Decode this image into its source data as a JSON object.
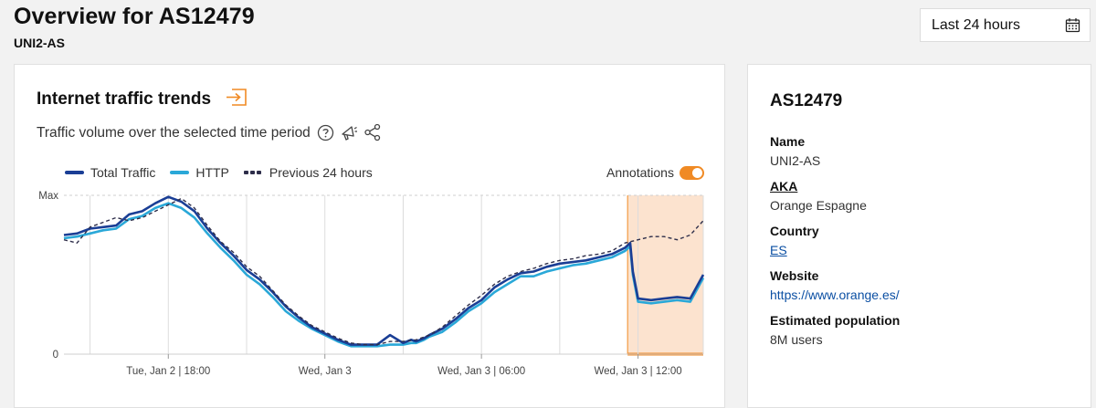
{
  "header": {
    "title": "Overview for AS12479",
    "subtitle": "UNI2-AS",
    "range_label": "Last 24 hours"
  },
  "traffic_card": {
    "title": "Internet traffic trends",
    "subtitle": "Traffic volume over the selected time period",
    "legend": [
      {
        "label": "Total Traffic",
        "color": "#1a3e95"
      },
      {
        "label": "HTTP",
        "color": "#2aa8d8"
      },
      {
        "label": "Previous 24 hours",
        "color": "#2e2e4a"
      }
    ],
    "annotations_label": "Annotations",
    "annotation_color": "#f08a24"
  },
  "info_card": {
    "title": "AS12479",
    "fields": [
      {
        "label": "Name",
        "value": "UNI2-AS"
      },
      {
        "label": "AKA",
        "value": "Orange Espagne"
      },
      {
        "label": "Country",
        "value": "ES"
      },
      {
        "label": "Website",
        "value": "https://www.orange.es/"
      },
      {
        "label": "Estimated population",
        "value": "8M users"
      }
    ]
  },
  "chart_data": {
    "type": "line",
    "y_tick_labels": [
      "Max",
      "0"
    ],
    "x_tick_labels": [
      "Tue, Jan 2 | 18:00",
      "Wed, Jan 3",
      "Wed, Jan 3 | 06:00",
      "Wed, Jan 3 | 12:00"
    ],
    "ylim": [
      0,
      1
    ],
    "xlim": [
      14.0,
      38.5
    ],
    "x_ticks": [
      18,
      24,
      30,
      36
    ],
    "grid": true,
    "legend_position": "top-left",
    "annotation_window": {
      "start": 35.6,
      "end": 38.5
    },
    "series": [
      {
        "name": "Total Traffic",
        "color": "#1a3e95",
        "x": [
          14.0,
          14.5,
          15.0,
          15.5,
          16.0,
          16.5,
          17.0,
          17.5,
          18.0,
          18.5,
          19.0,
          19.5,
          20.0,
          20.5,
          21.0,
          21.5,
          22.0,
          22.5,
          23.0,
          23.5,
          24.0,
          24.5,
          25.0,
          25.5,
          26.0,
          26.5,
          27.0,
          27.3,
          27.5,
          27.8,
          28.0,
          28.5,
          29.0,
          29.5,
          30.0,
          30.5,
          31.0,
          31.5,
          32.0,
          32.5,
          33.0,
          33.5,
          34.0,
          34.5,
          35.0,
          35.5,
          35.7,
          35.8,
          36.0,
          36.5,
          37.0,
          37.5,
          38.0,
          38.5
        ],
        "y": [
          0.75,
          0.76,
          0.79,
          0.8,
          0.81,
          0.88,
          0.9,
          0.95,
          0.99,
          0.96,
          0.9,
          0.79,
          0.7,
          0.62,
          0.53,
          0.47,
          0.39,
          0.3,
          0.23,
          0.17,
          0.13,
          0.09,
          0.06,
          0.06,
          0.06,
          0.12,
          0.07,
          0.09,
          0.08,
          0.1,
          0.12,
          0.16,
          0.22,
          0.29,
          0.34,
          0.42,
          0.47,
          0.51,
          0.52,
          0.55,
          0.57,
          0.58,
          0.59,
          0.61,
          0.63,
          0.67,
          0.7,
          0.52,
          0.35,
          0.34,
          0.35,
          0.36,
          0.35,
          0.5
        ]
      },
      {
        "name": "HTTP",
        "color": "#2aa8d8",
        "x": [
          14.0,
          14.5,
          15.0,
          15.5,
          16.0,
          16.5,
          17.0,
          17.5,
          18.0,
          18.5,
          19.0,
          19.5,
          20.0,
          20.5,
          21.0,
          21.5,
          22.0,
          22.5,
          23.0,
          23.5,
          24.0,
          24.5,
          25.0,
          25.5,
          26.0,
          26.5,
          27.0,
          27.3,
          27.5,
          27.8,
          28.0,
          28.5,
          29.0,
          29.5,
          30.0,
          30.5,
          31.0,
          31.5,
          32.0,
          32.5,
          33.0,
          33.5,
          34.0,
          34.5,
          35.0,
          35.5,
          35.7,
          35.8,
          36.0,
          36.5,
          37.0,
          37.5,
          38.0,
          38.5
        ],
        "y": [
          0.73,
          0.74,
          0.76,
          0.78,
          0.79,
          0.85,
          0.87,
          0.92,
          0.95,
          0.92,
          0.86,
          0.76,
          0.67,
          0.59,
          0.5,
          0.44,
          0.36,
          0.27,
          0.21,
          0.16,
          0.12,
          0.08,
          0.05,
          0.05,
          0.05,
          0.06,
          0.06,
          0.07,
          0.07,
          0.09,
          0.11,
          0.14,
          0.2,
          0.27,
          0.32,
          0.39,
          0.44,
          0.49,
          0.49,
          0.52,
          0.54,
          0.56,
          0.57,
          0.59,
          0.61,
          0.65,
          0.68,
          0.5,
          0.33,
          0.32,
          0.33,
          0.34,
          0.33,
          0.48
        ]
      },
      {
        "name": "Previous 24 hours",
        "color": "#2e2e4a",
        "dashed": true,
        "x": [
          14.0,
          14.5,
          15.0,
          15.5,
          16.0,
          16.5,
          17.0,
          17.5,
          18.0,
          18.5,
          19.0,
          19.5,
          20.0,
          20.5,
          21.0,
          21.5,
          22.0,
          22.5,
          23.0,
          23.5,
          24.0,
          24.5,
          25.0,
          25.5,
          26.0,
          26.5,
          27.0,
          27.5,
          28.0,
          28.5,
          29.0,
          29.5,
          30.0,
          30.5,
          31.0,
          31.5,
          32.0,
          32.5,
          33.0,
          33.5,
          34.0,
          34.5,
          35.0,
          35.5,
          36.0,
          36.5,
          37.0,
          37.5,
          38.0,
          38.5
        ],
        "y": [
          0.72,
          0.7,
          0.8,
          0.83,
          0.86,
          0.84,
          0.86,
          0.9,
          0.94,
          0.98,
          0.92,
          0.81,
          0.71,
          0.64,
          0.55,
          0.49,
          0.4,
          0.31,
          0.24,
          0.18,
          0.14,
          0.1,
          0.07,
          0.06,
          0.06,
          0.08,
          0.08,
          0.09,
          0.12,
          0.17,
          0.24,
          0.31,
          0.37,
          0.44,
          0.49,
          0.52,
          0.54,
          0.57,
          0.59,
          0.6,
          0.62,
          0.63,
          0.65,
          0.7,
          0.72,
          0.74,
          0.74,
          0.72,
          0.75,
          0.84
        ]
      }
    ]
  }
}
